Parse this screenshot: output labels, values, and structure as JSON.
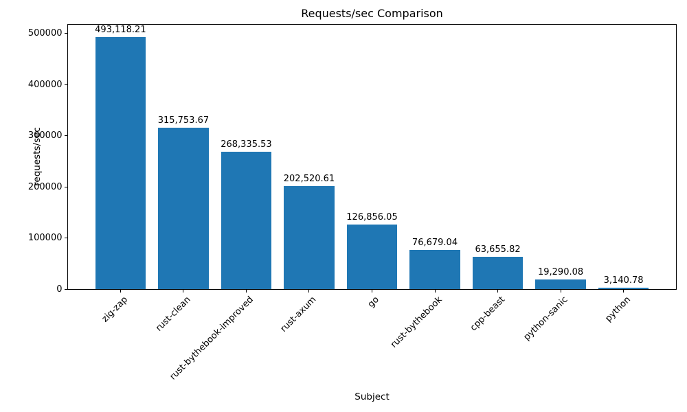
{
  "chart_data": {
    "type": "bar",
    "title": "Requests/sec Comparison",
    "xlabel": "Subject",
    "ylabel": "requests/sec",
    "categories": [
      "zig-zap",
      "rust-clean",
      "rust-bythebook-improved",
      "rust-axum",
      "go",
      "rust-bythebook",
      "cpp-beast",
      "python-sanic",
      "python"
    ],
    "values": [
      493118.21,
      315753.67,
      268335.53,
      202520.61,
      126856.05,
      76679.04,
      63655.82,
      19290.08,
      3140.78
    ],
    "value_labels": [
      "493,118.21",
      "315,753.67",
      "268,335.53",
      "202,520.61",
      "126,856.05",
      "76,679.04",
      "63,655.82",
      "19,290.08",
      "3,140.78"
    ],
    "yticks": [
      0,
      100000,
      200000,
      300000,
      400000,
      500000
    ],
    "ytick_labels": [
      "0",
      "100000",
      "200000",
      "300000",
      "400000",
      "500000"
    ],
    "ylim": [
      0,
      517774
    ],
    "xtick_rotation_deg": 45,
    "grid": false,
    "legend": null,
    "bar_color": "#1f77b4",
    "text_color": "#000000",
    "spine_color": "#000000"
  }
}
